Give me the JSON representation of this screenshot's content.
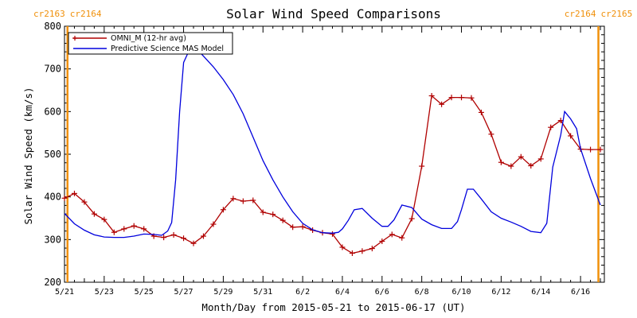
{
  "chart_data": {
    "type": "line",
    "title": "Solar Wind Speed Comparisons",
    "xlabel": "Month/Day from 2015-05-21 to 2015-06-17 (UT)",
    "ylabel": "Solar Wind Speed (km/s)",
    "xlim": [
      0,
      27.2
    ],
    "ylim": [
      200,
      800
    ],
    "yticks": [
      200,
      300,
      400,
      500,
      600,
      700,
      800
    ],
    "xticks": [
      {
        "x": 0,
        "label": "5/21"
      },
      {
        "x": 2,
        "label": "5/23"
      },
      {
        "x": 4,
        "label": "5/25"
      },
      {
        "x": 6,
        "label": "5/27"
      },
      {
        "x": 8,
        "label": "5/29"
      },
      {
        "x": 10,
        "label": "5/31"
      },
      {
        "x": 12,
        "label": "6/2"
      },
      {
        "x": 14,
        "label": "6/4"
      },
      {
        "x": 16,
        "label": "6/6"
      },
      {
        "x": 18,
        "label": "6/8"
      },
      {
        "x": 20,
        "label": "6/10"
      },
      {
        "x": 22,
        "label": "6/12"
      },
      {
        "x": 24,
        "label": "6/14"
      },
      {
        "x": 26,
        "label": "6/16"
      }
    ],
    "carrington_markers": [
      {
        "x": 0.15,
        "left_label": "cr2163",
        "right_label": "cr2164",
        "side": "left"
      },
      {
        "x": 26.9,
        "left_label": "cr2164",
        "right_label": "cr2165",
        "side": "right"
      }
    ],
    "legend_position": "top-left",
    "series": [
      {
        "name": "OMNI_M (12-hr avg)",
        "color": "#b00000",
        "marker": "plus",
        "x": [
          0,
          0.5,
          1,
          1.5,
          2,
          2.5,
          3,
          3.5,
          4,
          4.5,
          5,
          5.5,
          6,
          6.5,
          7,
          7.5,
          8,
          8.5,
          9,
          9.5,
          10,
          10.5,
          11,
          11.5,
          12,
          12.5,
          13,
          13.5,
          14,
          14.5,
          15,
          15.5,
          16,
          16.5,
          17,
          17.5,
          18,
          18.5,
          19,
          19.5,
          20,
          20.5,
          21,
          21.5,
          22,
          22.5,
          23,
          23.5,
          24,
          24.5,
          25,
          25.5,
          26,
          26.5,
          27
        ],
        "y": [
          397,
          408,
          388,
          360,
          347,
          317,
          325,
          332,
          325,
          308,
          305,
          311,
          303,
          291,
          308,
          336,
          370,
          396,
          390,
          392,
          364,
          359,
          345,
          329,
          330,
          322,
          316,
          313,
          282,
          268,
          273,
          279,
          296,
          312,
          304,
          349,
          472,
          637,
          617,
          633,
          633,
          632,
          598,
          547,
          481,
          472,
          494,
          473,
          489,
          563,
          579,
          543,
          512,
          511,
          511
        ]
      },
      {
        "name": "Predictive Science MAS Model",
        "color": "#0000dd",
        "marker": "none",
        "x": [
          0,
          0.5,
          1,
          1.5,
          2,
          2.5,
          3,
          3.5,
          4,
          4.5,
          4.9,
          5.2,
          5.4,
          5.6,
          5.8,
          6,
          6.2,
          6.5,
          6.8,
          7,
          7.5,
          8,
          8.5,
          9,
          9.5,
          10,
          10.5,
          11,
          11.5,
          12,
          12.5,
          13,
          13.5,
          13.8,
          14,
          14.3,
          14.6,
          15,
          15.5,
          16,
          16.3,
          16.6,
          17,
          17.5,
          18,
          18.5,
          19,
          19.5,
          19.8,
          20,
          20.3,
          20.6,
          21,
          21.5,
          22,
          22.5,
          23,
          23.5,
          24,
          24.3,
          24.6,
          25,
          25.2,
          25.5,
          25.8,
          26,
          26.5,
          27
        ],
        "y": [
          361,
          337,
          322,
          311,
          306,
          305,
          305,
          308,
          313,
          312,
          310,
          320,
          340,
          440,
          600,
          715,
          735,
          745,
          740,
          730,
          705,
          675,
          640,
          595,
          540,
          485,
          440,
          400,
          365,
          338,
          323,
          316,
          315,
          317,
          325,
          345,
          370,
          373,
          350,
          331,
          331,
          346,
          381,
          375,
          348,
          335,
          326,
          326,
          342,
          370,
          418,
          418,
          395,
          365,
          350,
          341,
          331,
          319,
          316,
          338,
          470,
          545,
          600,
          583,
          560,
          513,
          443,
          381
        ]
      }
    ]
  }
}
